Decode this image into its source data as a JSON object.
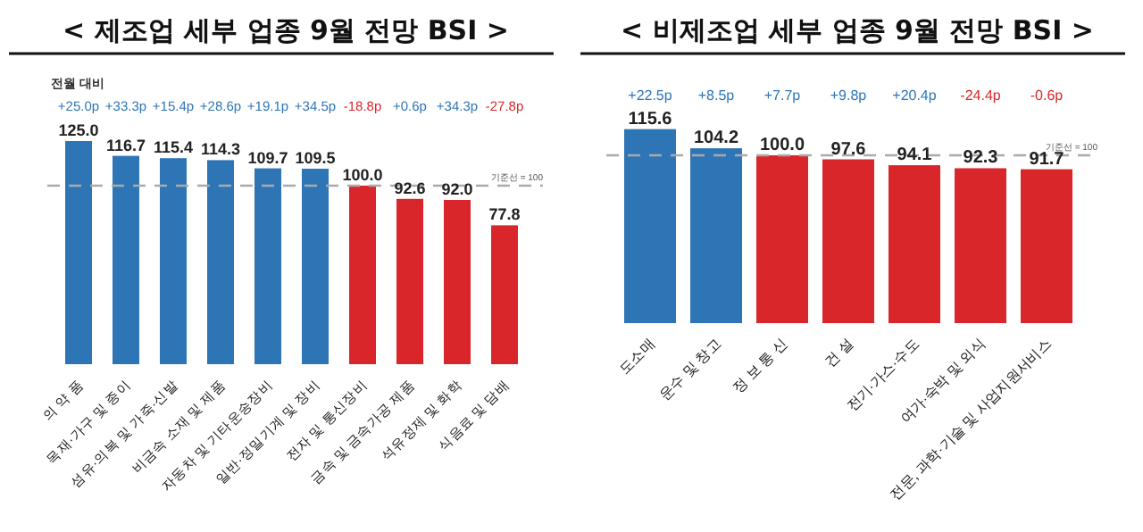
{
  "chart_data": [
    {
      "type": "bar",
      "title": "< 제조업 세부 업종 9월 전망 BSI >",
      "subtitle": "전월 대비",
      "categories": [
        "의 약 품",
        "목재·가구 및 종이",
        "섬유·의복 및 가죽·신발",
        "비금속 소재 및 제품",
        "자동차 및 기타운송장비",
        "일반·정밀기계 및 장비",
        "전자 및 통신장비",
        "금속 및 금속가공 제품",
        "석유정제 및 화학",
        "식음료 및 담배"
      ],
      "values": [
        125.0,
        116.7,
        115.4,
        114.3,
        109.7,
        109.5,
        100.0,
        92.6,
        92.0,
        77.8
      ],
      "value_labels": [
        "125.0",
        "116.7",
        "115.4",
        "114.3",
        "109.7",
        "109.5",
        "100.0",
        "92.6",
        "92.0",
        "77.8"
      ],
      "colors": [
        "#2e75b6",
        "#2e75b6",
        "#2e75b6",
        "#2e75b6",
        "#2e75b6",
        "#2e75b6",
        "#d9262b",
        "#d9262b",
        "#d9262b",
        "#d9262b"
      ],
      "ref_lines": [
        {
          "axis": "y",
          "value": 100,
          "label": "기준선 = 100",
          "color": "#aaaaaa",
          "line_style": "dashed"
        }
      ],
      "annotations": [
        "+25.0p",
        "+33.3p",
        "+15.4p",
        "+28.6p",
        "+19.1p",
        "+34.5p",
        "-18.8p",
        "+0.6p",
        "+34.3p",
        "-27.8p"
      ]
    },
    {
      "type": "bar",
      "title": "< 비제조업 세부 업종 9월 전망 BSI >",
      "categories": [
        "도소매",
        "운수 및 창고",
        "정 보 통 신",
        "건 설",
        "전기·가스·수도",
        "여가·숙박 및 외식",
        "전문, 과학·기술 및 사업지원서비스"
      ],
      "values": [
        115.6,
        104.2,
        100.0,
        97.6,
        94.1,
        92.3,
        91.7
      ],
      "value_labels": [
        "115.6",
        "104.2",
        "100.0",
        "97.6",
        "94.1",
        "92.3",
        "91.7"
      ],
      "colors": [
        "#2e75b6",
        "#2e75b6",
        "#d9262b",
        "#d9262b",
        "#d9262b",
        "#d9262b",
        "#d9262b"
      ],
      "ref_lines": [
        {
          "axis": "y",
          "value": 100,
          "label": "기준선 = 100",
          "color": "#aaaaaa",
          "line_style": "dashed"
        }
      ],
      "annotations": [
        "+22.5p",
        "+8.5p",
        "+7.7p",
        "+9.8p",
        "+20.4p",
        "-24.4p",
        "-0.6p"
      ]
    }
  ]
}
